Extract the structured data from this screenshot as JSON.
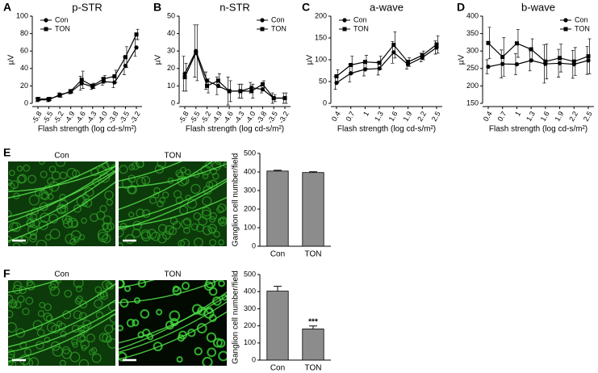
{
  "chart_data": [
    {
      "type": "line",
      "panel": "A",
      "title": "p-STR",
      "xlabel": "Flash strength (log cd-s/m²)",
      "ylabel": "µV",
      "categories": [
        "-5.8",
        "-5.5",
        "-5.2",
        "-4.9",
        "-4.6",
        "-4.3",
        "-4.0",
        "-3.8",
        "-3.5",
        "-3.2"
      ],
      "ylim": [
        0,
        100
      ],
      "yticks": [
        0,
        20,
        40,
        60,
        80,
        100
      ],
      "legend": "upper left",
      "series": [
        {
          "name": "Con",
          "marker": "circle",
          "color": "#000000",
          "values": [
            4,
            4,
            10,
            13,
            23,
            19,
            25,
            24,
            43,
            64
          ],
          "errors": [
            2,
            2,
            2,
            2,
            8,
            3,
            4,
            6,
            10,
            10
          ]
        },
        {
          "name": "TON",
          "marker": "square",
          "color": "#000000",
          "values": [
            5,
            5,
            9,
            14,
            27,
            20,
            28,
            31,
            53,
            79
          ],
          "errors": [
            2,
            2,
            2,
            2,
            10,
            3,
            4,
            7,
            12,
            6
          ]
        }
      ]
    },
    {
      "type": "line",
      "panel": "B",
      "title": "n-STR",
      "xlabel": "Flash strength (log cd-s/m²)",
      "ylabel": "µV",
      "categories": [
        "-5.8",
        "-5.5",
        "-5.2",
        "-4.9",
        "-4.6",
        "-4.3",
        "-4.0",
        "-3.8",
        "-3.5",
        "-3.2"
      ],
      "ylim": [
        0,
        50
      ],
      "yticks": [
        0,
        10,
        20,
        30,
        40,
        50
      ],
      "legend": "upper right",
      "series": [
        {
          "name": "Con",
          "marker": "circle",
          "color": "#000000",
          "values": [
            17,
            30,
            13,
            10,
            7,
            7,
            9,
            8,
            3,
            3
          ],
          "errors": [
            10,
            15,
            5,
            5,
            8,
            4,
            3,
            2,
            3,
            3
          ]
        },
        {
          "name": "TON",
          "marker": "square",
          "color": "#000000",
          "values": [
            15,
            29,
            10,
            13,
            7,
            7,
            7,
            11,
            3,
            3
          ],
          "errors": [
            8,
            16,
            4,
            4,
            6,
            4,
            4,
            2,
            2,
            3
          ]
        }
      ]
    },
    {
      "type": "line",
      "panel": "C",
      "title": "a-wave",
      "xlabel": "Flash strength (log cd-s/m²)",
      "ylabel": "µV",
      "categories": [
        "0.4",
        "0.7",
        "1",
        "1.3",
        "1.6",
        "1.9",
        "2.2",
        "2.5"
      ],
      "ylim": [
        0,
        200
      ],
      "yticks": [
        0,
        50,
        100,
        150,
        200
      ],
      "legend": "upper left",
      "series": [
        {
          "name": "Con",
          "marker": "circle",
          "color": "#000000",
          "values": [
            47,
            69,
            78,
            80,
            117,
            89,
            105,
            128
          ],
          "errors": [
            15,
            20,
            15,
            15,
            25,
            10,
            10,
            15
          ]
        },
        {
          "name": "TON",
          "marker": "square",
          "color": "#000000",
          "values": [
            62,
            88,
            95,
            93,
            134,
            95,
            110,
            135
          ],
          "errors": [
            15,
            20,
            15,
            15,
            30,
            10,
            10,
            20
          ]
        }
      ]
    },
    {
      "type": "line",
      "panel": "D",
      "title": "b-wave",
      "xlabel": "Flash strength (log cd-s/m²)",
      "ylabel": "µV",
      "categories": [
        "0.4",
        "0.7",
        "1",
        "1.3",
        "1.6",
        "1.9",
        "2.2",
        "2.5"
      ],
      "ylim": [
        150,
        400
      ],
      "yticks": [
        150,
        200,
        250,
        300,
        350,
        400
      ],
      "legend": "upper right",
      "series": [
        {
          "name": "Con",
          "marker": "circle",
          "color": "#000000",
          "values": [
            255,
            263,
            262,
            273,
            263,
            265,
            262,
            273
          ],
          "errors": [
            20,
            40,
            30,
            30,
            55,
            40,
            40,
            40
          ]
        },
        {
          "name": "TON",
          "marker": "square",
          "color": "#000000",
          "values": [
            323,
            283,
            322,
            305,
            270,
            280,
            270,
            285
          ],
          "errors": [
            45,
            55,
            40,
            30,
            50,
            40,
            40,
            50
          ]
        }
      ]
    },
    {
      "type": "bar",
      "panel": "E",
      "image_labels": [
        "Con",
        "TON"
      ],
      "ylabel": "Ganglion cell number/field",
      "categories": [
        "Con",
        "TON"
      ],
      "values": [
        405,
        397
      ],
      "errors": [
        4,
        4
      ],
      "color": "#8c8c8c",
      "ylim": [
        0,
        500
      ],
      "yticks": [
        0,
        100,
        200,
        300,
        400,
        500
      ]
    },
    {
      "type": "bar",
      "panel": "F",
      "image_labels": [
        "Con",
        "TON"
      ],
      "ylabel": "Ganglion cell number/field",
      "categories": [
        "Con",
        "TON"
      ],
      "values": [
        403,
        182
      ],
      "errors": [
        28,
        17
      ],
      "color": "#8c8c8c",
      "ylim": [
        0,
        500
      ],
      "yticks": [
        0,
        100,
        200,
        300,
        400,
        500
      ],
      "annotation": "***"
    }
  ]
}
